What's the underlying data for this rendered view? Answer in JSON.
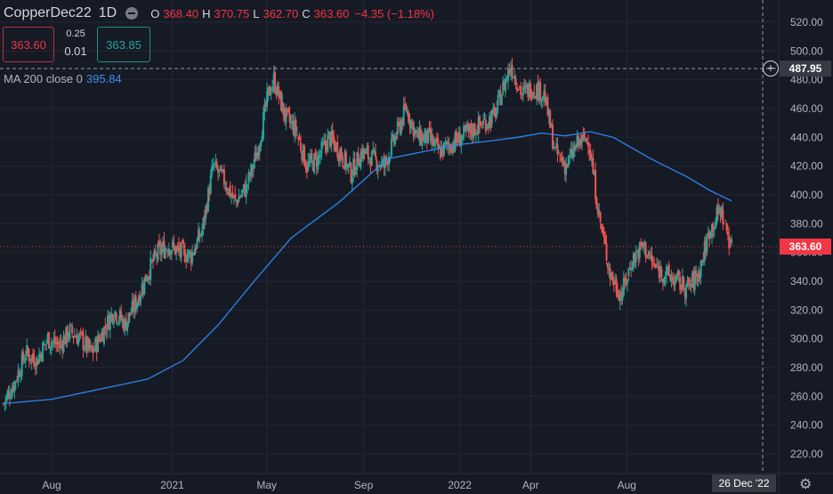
{
  "header": {
    "symbol": "CopperDec22",
    "timeframe": "1D",
    "ohlc": {
      "o_label": "O",
      "o": "368.40",
      "h_label": "H",
      "h": "370.75",
      "l_label": "L",
      "l": "362.70",
      "c_label": "C",
      "c": "363.60",
      "change": "−4.35 (−1.18%)"
    }
  },
  "trade": {
    "sell": "363.60",
    "spread_top": "0.25",
    "spread_bottom": "0.01",
    "buy": "363.85"
  },
  "indicator": {
    "label": "MA 200 close 0",
    "value": "395.84"
  },
  "price_axis": {
    "crosshair_label": "487.95",
    "last_price_label": "363.60",
    "ticks": [
      "520.00",
      "500.00",
      "480.00",
      "460.00",
      "440.00",
      "420.00",
      "400.00",
      "380.00",
      "360.00",
      "340.00",
      "320.00",
      "300.00",
      "280.00",
      "260.00",
      "240.00",
      "220.00"
    ]
  },
  "time_axis": {
    "ticks": [
      "Aug",
      "2021",
      "May",
      "Sep",
      "2022",
      "Apr",
      "Aug"
    ],
    "crosshair_label": "26 Dec '22"
  },
  "icons": {
    "settings": "gear-icon",
    "add": "plus-circle-icon",
    "visibility": "eye-dot-icon"
  },
  "colors": {
    "background": "#161a25",
    "up": "#26a69a",
    "down": "#f23645",
    "ma": "#2f86f0",
    "grid": "#242733"
  },
  "chart_data": {
    "type": "candlestick",
    "ylim": [
      205,
      530
    ],
    "xlabel": "",
    "ylabel": "",
    "series": [
      {
        "name": "CopperDec22",
        "type": "ohlc-close-approx",
        "points": [
          [
            "2020-06-01",
            255
          ],
          [
            "2020-06-15",
            270
          ],
          [
            "2020-06-29",
            290
          ],
          [
            "2020-07-13",
            285
          ],
          [
            "2020-07-27",
            300
          ],
          [
            "2020-08-10",
            295
          ],
          [
            "2020-08-24",
            305
          ],
          [
            "2020-09-07",
            300
          ],
          [
            "2020-09-21",
            290
          ],
          [
            "2020-10-05",
            305
          ],
          [
            "2020-10-19",
            320
          ],
          [
            "2020-11-02",
            310
          ],
          [
            "2020-11-16",
            325
          ],
          [
            "2020-11-30",
            345
          ],
          [
            "2020-12-14",
            360
          ],
          [
            "2020-12-28",
            365
          ],
          [
            "2021-01-11",
            360
          ],
          [
            "2021-01-25",
            358
          ],
          [
            "2021-02-08",
            375
          ],
          [
            "2021-02-22",
            420
          ],
          [
            "2021-03-08",
            410
          ],
          [
            "2021-03-22",
            395
          ],
          [
            "2021-04-05",
            405
          ],
          [
            "2021-04-19",
            430
          ],
          [
            "2021-05-03",
            470
          ],
          [
            "2021-05-10",
            480
          ],
          [
            "2021-05-24",
            455
          ],
          [
            "2021-06-07",
            445
          ],
          [
            "2021-06-21",
            420
          ],
          [
            "2021-07-05",
            425
          ],
          [
            "2021-07-19",
            440
          ],
          [
            "2021-08-02",
            430
          ],
          [
            "2021-08-16",
            415
          ],
          [
            "2021-08-30",
            430
          ],
          [
            "2021-09-13",
            425
          ],
          [
            "2021-09-27",
            420
          ],
          [
            "2021-10-11",
            440
          ],
          [
            "2021-10-25",
            460
          ],
          [
            "2021-11-08",
            440
          ],
          [
            "2021-11-22",
            440
          ],
          [
            "2021-12-06",
            430
          ],
          [
            "2021-12-20",
            435
          ],
          [
            "2022-01-03",
            440
          ],
          [
            "2022-01-17",
            445
          ],
          [
            "2022-01-31",
            450
          ],
          [
            "2022-02-14",
            455
          ],
          [
            "2022-02-28",
            480
          ],
          [
            "2022-03-07",
            490
          ],
          [
            "2022-03-21",
            470
          ],
          [
            "2022-04-04",
            475
          ],
          [
            "2022-04-18",
            470
          ],
          [
            "2022-05-02",
            430
          ],
          [
            "2022-05-16",
            420
          ],
          [
            "2022-05-30",
            435
          ],
          [
            "2022-06-13",
            440
          ],
          [
            "2022-06-27",
            385
          ],
          [
            "2022-07-11",
            345
          ],
          [
            "2022-07-25",
            330
          ],
          [
            "2022-08-08",
            355
          ],
          [
            "2022-08-22",
            365
          ],
          [
            "2022-09-05",
            350
          ],
          [
            "2022-09-19",
            345
          ],
          [
            "2022-10-03",
            340
          ],
          [
            "2022-10-17",
            335
          ],
          [
            "2022-10-31",
            345
          ],
          [
            "2022-11-14",
            375
          ],
          [
            "2022-11-28",
            390
          ],
          [
            "2022-12-12",
            363.6
          ]
        ]
      },
      {
        "name": "MA 200 close 0",
        "type": "line",
        "points": [
          [
            "2020-06-01",
            255
          ],
          [
            "2020-08-01",
            258
          ],
          [
            "2020-10-01",
            265
          ],
          [
            "2020-12-01",
            272
          ],
          [
            "2021-01-15",
            285
          ],
          [
            "2021-03-01",
            310
          ],
          [
            "2021-04-15",
            340
          ],
          [
            "2021-06-01",
            370
          ],
          [
            "2021-08-01",
            395
          ],
          [
            "2021-10-01",
            425
          ],
          [
            "2021-11-15",
            430
          ],
          [
            "2022-01-01",
            435
          ],
          [
            "2022-02-15",
            438
          ],
          [
            "2022-03-15",
            440
          ],
          [
            "2022-04-15",
            443
          ],
          [
            "2022-05-15",
            441
          ],
          [
            "2022-06-15",
            444
          ],
          [
            "2022-07-15",
            440
          ],
          [
            "2022-09-01",
            425
          ],
          [
            "2022-10-15",
            413
          ],
          [
            "2022-11-15",
            403
          ],
          [
            "2022-12-12",
            395.84
          ]
        ]
      }
    ]
  }
}
